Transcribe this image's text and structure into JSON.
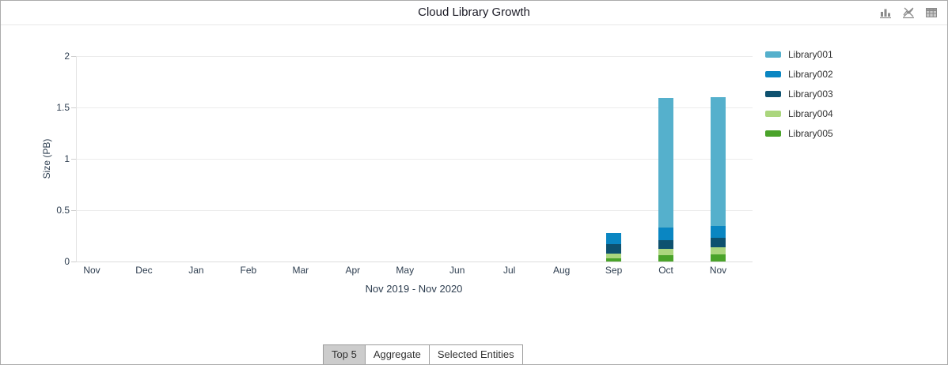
{
  "window": {
    "title": "Cloud Library Growth"
  },
  "header": {
    "icons": [
      {
        "name": "bar-chart-icon"
      },
      {
        "name": "line-chart-icon"
      },
      {
        "name": "table-icon"
      }
    ]
  },
  "chart_data": {
    "type": "bar",
    "stacked": true,
    "title": "Cloud Library Growth",
    "xlabel": "Nov 2019 - Nov 2020",
    "ylabel": "Size (PB)",
    "ylim": [
      0,
      2
    ],
    "yticks": [
      0,
      0.5,
      1,
      1.5,
      2
    ],
    "grid": "horizontal",
    "legend_position": "right",
    "categories": [
      "Nov",
      "Dec",
      "Jan",
      "Feb",
      "Mar",
      "Apr",
      "May",
      "Jun",
      "Jul",
      "Aug",
      "Sep",
      "Oct",
      "Nov"
    ],
    "series": [
      {
        "name": "Library001",
        "color": "#55b0cc",
        "values": [
          0,
          0,
          0,
          0,
          0,
          0,
          0,
          0,
          0,
          0,
          0,
          1.26,
          1.25
        ]
      },
      {
        "name": "Library002",
        "color": "#0a86c2",
        "values": [
          0,
          0,
          0,
          0,
          0,
          0,
          0,
          0,
          0,
          0,
          0.11,
          0.12,
          0.12
        ]
      },
      {
        "name": "Library003",
        "color": "#0e516f",
        "values": [
          0,
          0,
          0,
          0,
          0,
          0,
          0,
          0,
          0,
          0,
          0.09,
          0.09,
          0.09
        ]
      },
      {
        "name": "Library004",
        "color": "#abd67e",
        "values": [
          0,
          0,
          0,
          0,
          0,
          0,
          0,
          0,
          0,
          0,
          0.05,
          0.06,
          0.07
        ]
      },
      {
        "name": "Library005",
        "color": "#4aa32a",
        "values": [
          0,
          0,
          0,
          0,
          0,
          0,
          0,
          0,
          0,
          0,
          0.03,
          0.06,
          0.07
        ]
      }
    ],
    "totals_by_visible_bar": {
      "Sep": 0.28,
      "Oct": 1.59,
      "Nov": 1.6
    }
  },
  "tabs": [
    {
      "label": "Top 5",
      "active": true
    },
    {
      "label": "Aggregate",
      "active": false
    },
    {
      "label": "Selected Entities",
      "active": false
    }
  ]
}
